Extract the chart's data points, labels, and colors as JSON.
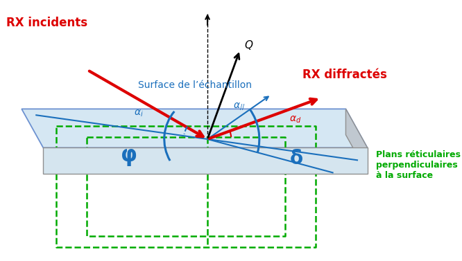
{
  "bg_color": "#ffffff",
  "surface_color": "#c8dff0",
  "surface_edge_color": "#4472c4",
  "side_color": "#c0c8d0",
  "side_edge_color": "#909090",
  "green_color": "#00aa00",
  "red_color": "#dd0000",
  "blue_color": "#1a6fbc",
  "black_color": "#000000",
  "labels": {
    "rx_incidents": "RX incidents",
    "rx_diffractes": "RX diffractés",
    "surface": "Surface de l’échantillon",
    "plans": "Plans réticulaires\nperpendiculaires\nà la surface",
    "phi": "φ",
    "delta": "δ",
    "Q": "Q"
  }
}
